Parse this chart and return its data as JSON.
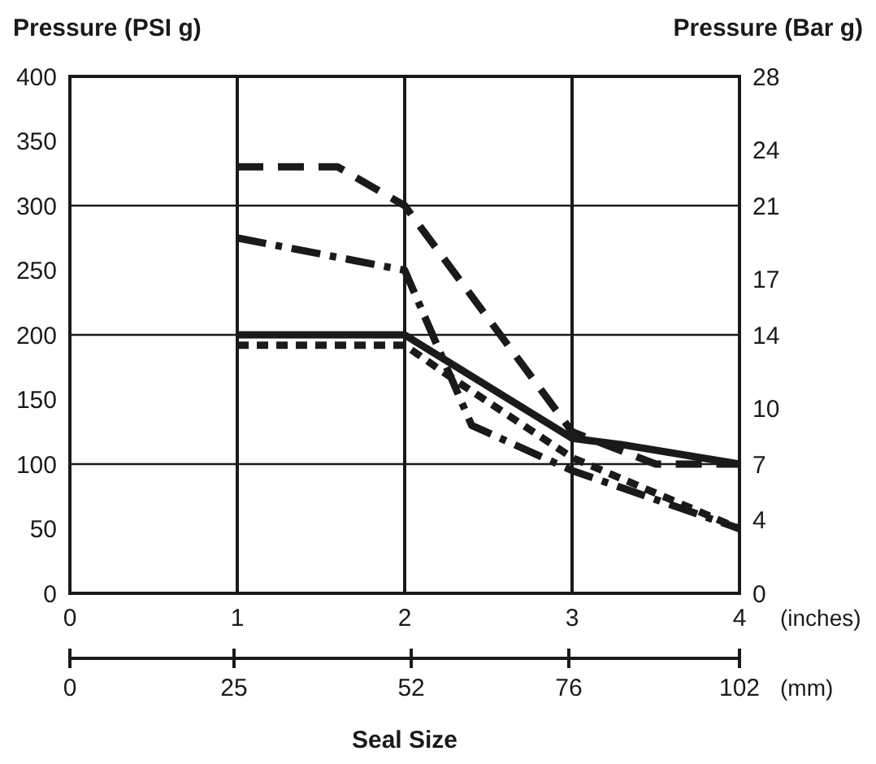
{
  "chart_data": {
    "type": "line",
    "ylabel": "Pressure (PSI g)",
    "y2label": "Pressure (Bar g)",
    "xlabel": "Seal Size",
    "xlim": [
      0,
      4
    ],
    "xticks": [
      0,
      1,
      2,
      3,
      4
    ],
    "x2lim": [
      0,
      102
    ],
    "x2ticks": [
      0,
      25,
      52,
      76,
      102
    ],
    "ylim": [
      0,
      400
    ],
    "yticks": [
      0,
      50,
      100,
      150,
      200,
      250,
      300,
      350,
      400
    ],
    "y2lim": [
      0,
      28
    ],
    "y2ticks": [
      0,
      4,
      7,
      10,
      14,
      17,
      21,
      24,
      28
    ],
    "grid": "x",
    "ref_lines": [
      {
        "axis": "y",
        "value": 100,
        "color": "#1a1a1a"
      },
      {
        "axis": "y",
        "value": 200,
        "color": "#1a1a1a"
      },
      {
        "axis": "y",
        "value": 300,
        "color": "#1a1a1a"
      }
    ],
    "annotations": [
      "(inches)",
      "(mm)"
    ],
    "series": [
      {
        "color": "#1a1a1a",
        "line_style": "dashed",
        "x": [
          1,
          1.6,
          2,
          3,
          3.5,
          4
        ],
        "values": [
          330,
          330,
          300,
          125,
          100,
          100
        ]
      },
      {
        "color": "#1a1a1a",
        "line_style": "dashdot",
        "x": [
          1,
          2,
          2.4,
          3,
          4
        ],
        "values": [
          275,
          250,
          130,
          95,
          50
        ]
      },
      {
        "color": "#1a1a1a",
        "line_style": "solid",
        "x": [
          1,
          2,
          3,
          3.3,
          4
        ],
        "values": [
          200,
          200,
          120,
          115,
          100
        ]
      },
      {
        "color": "#1a1a1a",
        "line_style": "dotted",
        "x": [
          1,
          2,
          2.3,
          3,
          4
        ],
        "values": [
          192,
          192,
          165,
          105,
          50
        ]
      }
    ]
  }
}
